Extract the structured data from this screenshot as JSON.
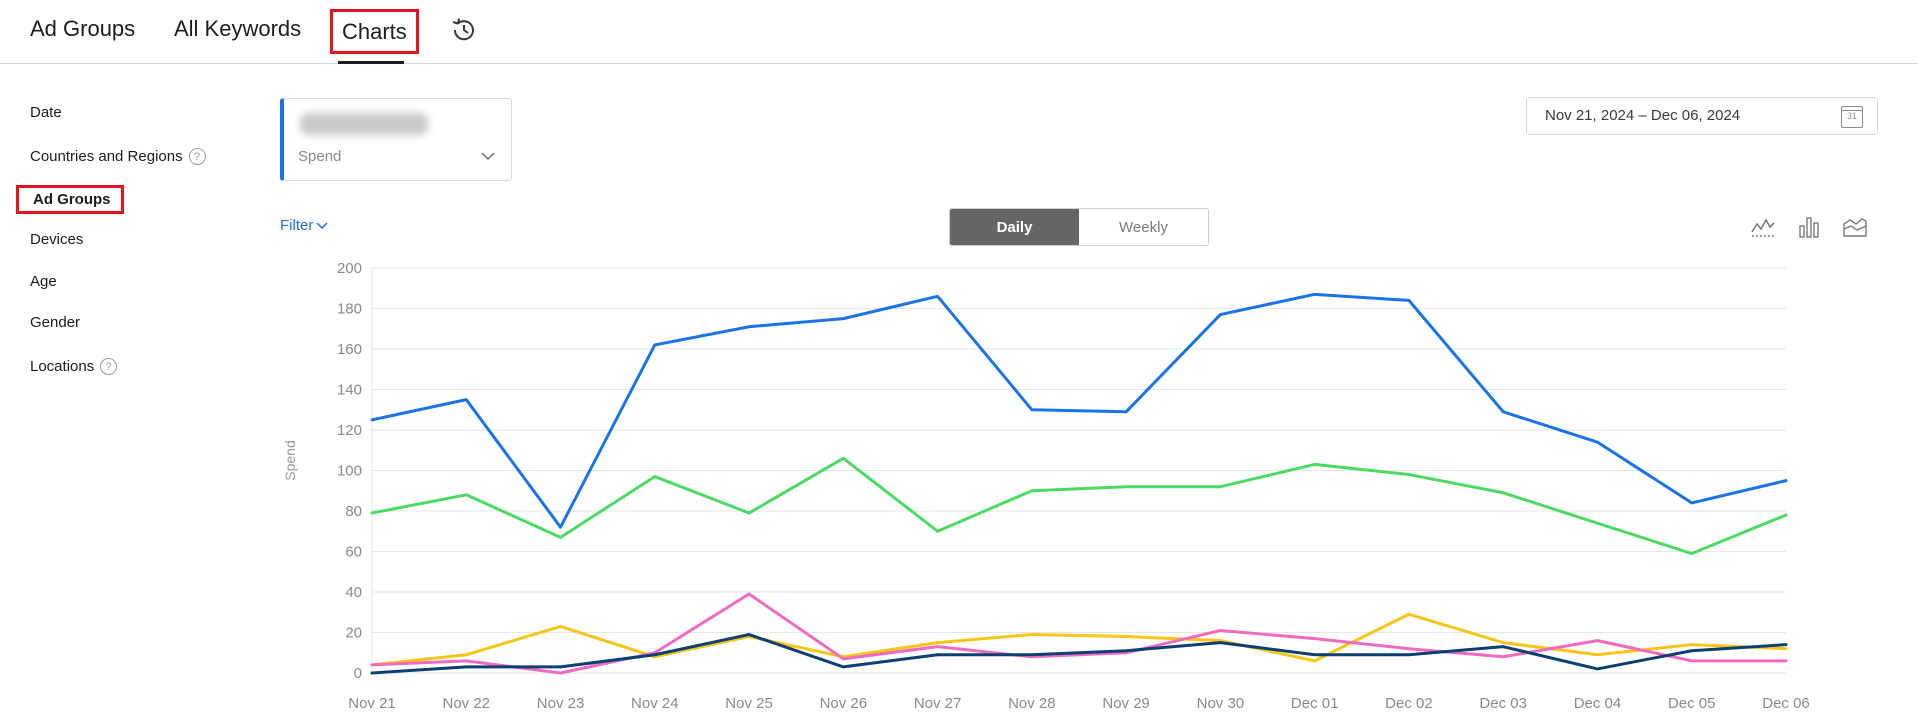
{
  "tabs": {
    "ad_groups": "Ad Groups",
    "all_keywords": "All Keywords",
    "charts": "Charts",
    "history_icon": "history-clock-icon"
  },
  "sidebar": {
    "items": [
      {
        "label": "Date",
        "help": false
      },
      {
        "label": "Countries and Regions",
        "help": true
      },
      {
        "label": "Ad Groups",
        "help": false,
        "active": true
      },
      {
        "label": "Devices",
        "help": false
      },
      {
        "label": "Age",
        "help": false
      },
      {
        "label": "Gender",
        "help": false
      },
      {
        "label": "Locations",
        "help": true
      }
    ],
    "help_glyph": "?"
  },
  "selector": {
    "metric": "Spend",
    "accent": "#1a73e8"
  },
  "daterange": {
    "text": "Nov 21, 2024 – Dec 06, 2024",
    "calendar_day": "31"
  },
  "filter": {
    "label": "Filter"
  },
  "granularity": {
    "options": [
      "Daily",
      "Weekly"
    ],
    "selected": "Daily"
  },
  "chart_type_icons": [
    "line-chart-icon",
    "bar-chart-icon",
    "area-chart-icon"
  ],
  "chart_data": {
    "type": "line",
    "ylabel": "Spend",
    "xlabel": "",
    "ylim": [
      0,
      200
    ],
    "yticks": [
      0,
      20,
      40,
      60,
      80,
      100,
      120,
      140,
      160,
      180,
      200
    ],
    "grid": true,
    "categories": [
      "Nov 21",
      "Nov 22",
      "Nov 23",
      "Nov 24",
      "Nov 25",
      "Nov 26",
      "Nov 27",
      "Nov 28",
      "Nov 29",
      "Nov 30",
      "Dec 01",
      "Dec 02",
      "Dec 03",
      "Dec 04",
      "Dec 05",
      "Dec 06"
    ],
    "series": [
      {
        "color": "#1a73e8",
        "values": [
          125,
          135,
          72,
          162,
          171,
          175,
          186,
          130,
          129,
          177,
          187,
          184,
          129,
          114,
          84,
          95
        ]
      },
      {
        "color": "#4cd964",
        "values": [
          79,
          88,
          67,
          97,
          79,
          106,
          70,
          90,
          92,
          92,
          103,
          98,
          89,
          74,
          59,
          78
        ]
      },
      {
        "color": "#f5c518",
        "values": [
          4,
          9,
          23,
          8,
          18,
          8,
          15,
          19,
          18,
          16,
          6,
          29,
          15,
          9,
          14,
          12
        ]
      },
      {
        "color": "#f06bbf",
        "values": [
          4,
          6,
          0,
          10,
          39,
          7,
          13,
          8,
          10,
          21,
          17,
          12,
          8,
          16,
          6,
          6
        ]
      },
      {
        "color": "#0d3f73",
        "values": [
          0,
          3,
          3,
          9,
          19,
          3,
          9,
          9,
          11,
          15,
          9,
          9,
          13,
          2,
          11,
          14
        ]
      }
    ]
  }
}
